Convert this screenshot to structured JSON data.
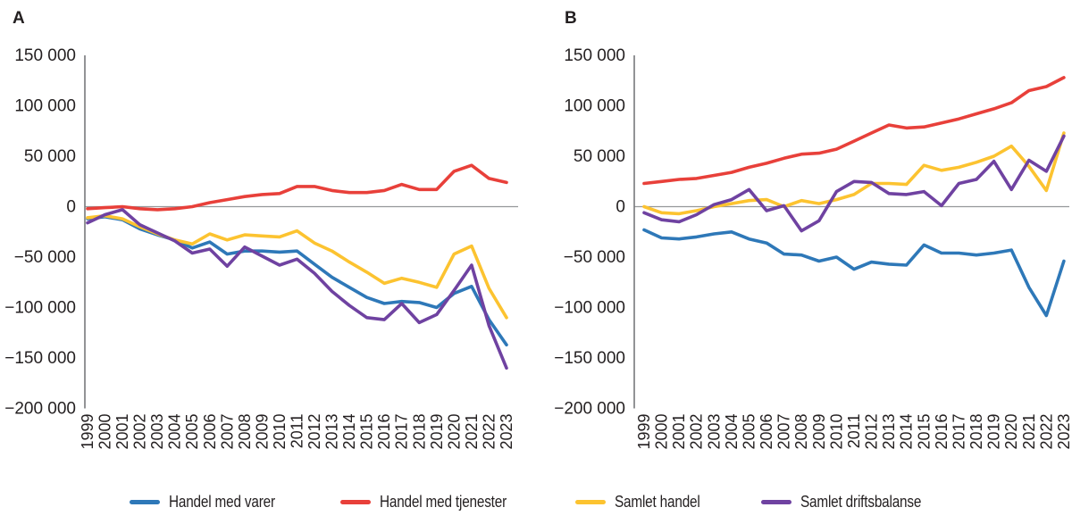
{
  "panel_titles": {
    "a": "A",
    "b": "B"
  },
  "legend": {
    "items": [
      {
        "label": "Handel med varer",
        "color": "#2E78B8"
      },
      {
        "label": "Handel med tjenester",
        "color": "#E8403A"
      },
      {
        "label": "Samlet handel",
        "color": "#FCC330"
      },
      {
        "label": "Samlet driftsbalanse",
        "color": "#6F42A1"
      }
    ]
  },
  "axes": {
    "y_tick_values": [
      150000,
      100000,
      50000,
      0,
      -50000,
      -100000,
      -150000,
      -200000
    ],
    "y_tick_labels": [
      "150 000",
      "100 000",
      "50 000",
      "0",
      "−50 000",
      "−100 000",
      "−150 000",
      "−200 000"
    ],
    "years": [
      "1999",
      "2000",
      "2001",
      "2002",
      "2003",
      "2004",
      "2005",
      "2006",
      "2007",
      "2008",
      "2009",
      "2010",
      "2011",
      "2012",
      "2013",
      "2014",
      "2015",
      "2016",
      "2017",
      "2018",
      "2019",
      "2020",
      "2021",
      "2022",
      "2023"
    ]
  },
  "chart_data": [
    {
      "type": "line",
      "panel": "A",
      "title": "A",
      "xlabel": "",
      "ylabel": "",
      "ylim": [
        -200000,
        150000
      ],
      "y_tick_interval": 50000,
      "grid": false,
      "legend_position": "bottom",
      "zero_line": true,
      "categories": [
        "1999",
        "2000",
        "2001",
        "2002",
        "2003",
        "2004",
        "2005",
        "2006",
        "2007",
        "2008",
        "2009",
        "2010",
        "2011",
        "2012",
        "2013",
        "2014",
        "2015",
        "2016",
        "2017",
        "2018",
        "2019",
        "2020",
        "2021",
        "2022",
        "2023"
      ],
      "series": [
        {
          "name": "Handel med varer",
          "color": "#2E78B8",
          "values": [
            -12000,
            -10000,
            -13000,
            -22000,
            -28000,
            -33000,
            -41000,
            -35000,
            -47000,
            -44000,
            -44000,
            -45000,
            -44000,
            -57000,
            -70000,
            -80000,
            -90000,
            -96000,
            -94000,
            -95000,
            -100000,
            -86000,
            -79000,
            -112000,
            -137000
          ]
        },
        {
          "name": "Handel med tjenester",
          "color": "#E8403A",
          "values": [
            -2000,
            -1000,
            0,
            -2000,
            -3000,
            -2000,
            0,
            4000,
            7000,
            10000,
            12000,
            13000,
            20000,
            20000,
            16000,
            14000,
            14000,
            16000,
            22000,
            17000,
            17000,
            35000,
            41000,
            28000,
            24000
          ]
        },
        {
          "name": "Samlet handel",
          "color": "#FCC330",
          "values": [
            -11000,
            -9000,
            -12000,
            -20000,
            -27000,
            -33000,
            -37000,
            -27000,
            -33000,
            -28000,
            -29000,
            -30000,
            -24000,
            -36000,
            -44000,
            -55000,
            -65000,
            -76000,
            -71000,
            -75000,
            -80000,
            -47000,
            -39000,
            -81000,
            -110000
          ]
        },
        {
          "name": "Samlet driftsbalanse",
          "color": "#6F42A1",
          "values": [
            -16000,
            -8000,
            -3000,
            -18000,
            -26000,
            -34000,
            -46000,
            -42000,
            -59000,
            -40000,
            -49000,
            -58000,
            -52000,
            -66000,
            -84000,
            -98000,
            -110000,
            -112000,
            -96000,
            -115000,
            -107000,
            -83000,
            -58000,
            -118000,
            -160000
          ]
        }
      ]
    },
    {
      "type": "line",
      "panel": "B",
      "title": "B",
      "xlabel": "",
      "ylabel": "",
      "ylim": [
        -200000,
        150000
      ],
      "y_tick_interval": 50000,
      "grid": false,
      "legend_position": "bottom",
      "zero_line": true,
      "categories": [
        "1999",
        "2000",
        "2001",
        "2002",
        "2003",
        "2004",
        "2005",
        "2006",
        "2007",
        "2008",
        "2009",
        "2010",
        "2011",
        "2012",
        "2013",
        "2014",
        "2015",
        "2016",
        "2017",
        "2018",
        "2019",
        "2020",
        "2021",
        "2022",
        "2023"
      ],
      "series": [
        {
          "name": "Handel med varer",
          "color": "#2E78B8",
          "values": [
            -23000,
            -31000,
            -32000,
            -30000,
            -27000,
            -25000,
            -32000,
            -36000,
            -47000,
            -48000,
            -54000,
            -50000,
            -62000,
            -55000,
            -57000,
            -58000,
            -38000,
            -46000,
            -46000,
            -48000,
            -46000,
            -43000,
            -80000,
            -108000,
            -54000
          ]
        },
        {
          "name": "Handel med tjenester",
          "color": "#E8403A",
          "values": [
            23000,
            25000,
            27000,
            28000,
            31000,
            34000,
            39000,
            43000,
            48000,
            52000,
            53000,
            57000,
            65000,
            73000,
            81000,
            78000,
            79000,
            83000,
            87000,
            92000,
            97000,
            103000,
            115000,
            119000,
            128000
          ]
        },
        {
          "name": "Samlet handel",
          "color": "#FCC330",
          "values": [
            0,
            -6000,
            -7000,
            -4000,
            0,
            3000,
            6000,
            7000,
            0,
            6000,
            3000,
            7000,
            12000,
            23000,
            23000,
            22000,
            41000,
            36000,
            39000,
            44000,
            50000,
            60000,
            40000,
            16000,
            73000
          ]
        },
        {
          "name": "Samlet driftsbalanse",
          "color": "#6F42A1",
          "values": [
            -6000,
            -13000,
            -15000,
            -8000,
            2000,
            7000,
            17000,
            -4000,
            1000,
            -24000,
            -14000,
            15000,
            25000,
            24000,
            13000,
            12000,
            15000,
            1000,
            23000,
            27000,
            45000,
            17000,
            46000,
            35000,
            70000
          ]
        }
      ]
    }
  ]
}
